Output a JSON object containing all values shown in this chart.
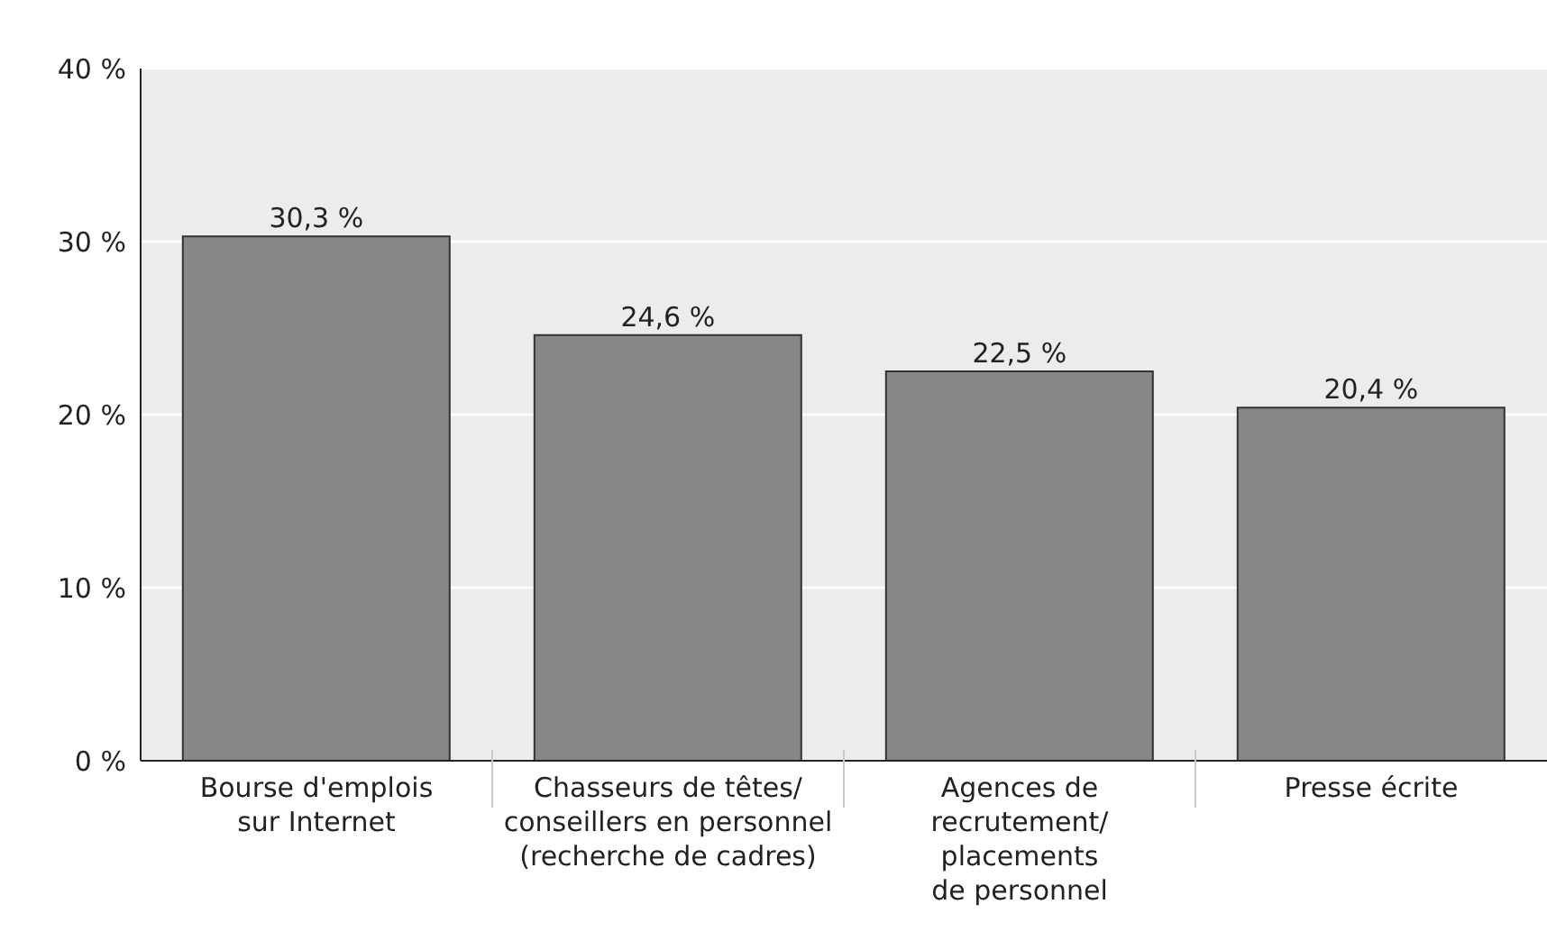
{
  "chart_data": {
    "type": "bar",
    "categories": [
      "Bourse d'emplois\nsur Internet",
      "Chasseurs de têtes/\nconseillers en personnel\n(recherche de cadres)",
      "Agences de\nrecrutement/\nplacements\nde personnel",
      "Presse écrite"
    ],
    "values": [
      30.3,
      24.6,
      22.5,
      20.4
    ],
    "value_labels": [
      "30,3 %",
      "24,6 %",
      "22,5 %",
      "20,4 %"
    ],
    "color": "#878787",
    "ylim": [
      0,
      40
    ],
    "yticks": [
      {
        "value": 0,
        "label": "0 %"
      },
      {
        "value": 10,
        "label": "10 %"
      },
      {
        "value": 20,
        "label": "20 %"
      },
      {
        "value": 30,
        "label": "30 %"
      },
      {
        "value": 40,
        "label": "40 %"
      }
    ],
    "grid": "y"
  }
}
